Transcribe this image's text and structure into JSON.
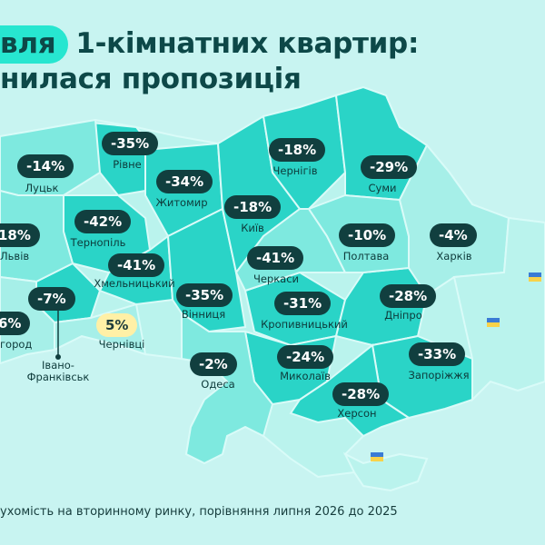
{
  "title": {
    "month_word": "вля",
    "line1_rest": "1-кімнатних квартир:",
    "line2": "нилася пропозиція"
  },
  "footnote": "ухомість на вторинному ринку, порівняння липня 2026 до 2025",
  "colors": {
    "background": "#c8f4f1",
    "map_dark": "#2ad4c7",
    "map_mid": "#7ee9df",
    "map_light": "#a6efe8",
    "map_pale": "#baf3ed",
    "badge_negative": "#113f3f",
    "badge_positive": "#fff0a6",
    "title_accent": "#27e6d0"
  },
  "regions": [
    {
      "name": "Луцьк",
      "change": "-14%"
    },
    {
      "name": "Рівне",
      "change": "-35%"
    },
    {
      "name": "Чернігів",
      "change": "-18%"
    },
    {
      "name": "Суми",
      "change": "-29%"
    },
    {
      "name": "Житомир",
      "change": "-34%"
    },
    {
      "name": "Київ",
      "change": "-18%"
    },
    {
      "name": "Львів",
      "change": "18%"
    },
    {
      "name": "Тернопіль",
      "change": "-42%"
    },
    {
      "name": "Полтава",
      "change": "-10%"
    },
    {
      "name": "Харків",
      "change": "-4%"
    },
    {
      "name": "Хмельницький",
      "change": "-41%"
    },
    {
      "name": "Черкаси",
      "change": "-41%"
    },
    {
      "name": "Івано-Франківськ",
      "change": "-7%"
    },
    {
      "name": "Вінниця",
      "change": "-35%"
    },
    {
      "name": "Кропивницький",
      "change": "-31%"
    },
    {
      "name": "Дніпро",
      "change": "-28%"
    },
    {
      "name": "город",
      "change": "6%"
    },
    {
      "name": "Чернівці",
      "change": "5%"
    },
    {
      "name": "Запоріжжя",
      "change": "-33%"
    },
    {
      "name": "Одеса",
      "change": "-2%"
    },
    {
      "name": "Миколаїв",
      "change": "-24%"
    },
    {
      "name": "Херсон",
      "change": "-28%"
    }
  ]
}
